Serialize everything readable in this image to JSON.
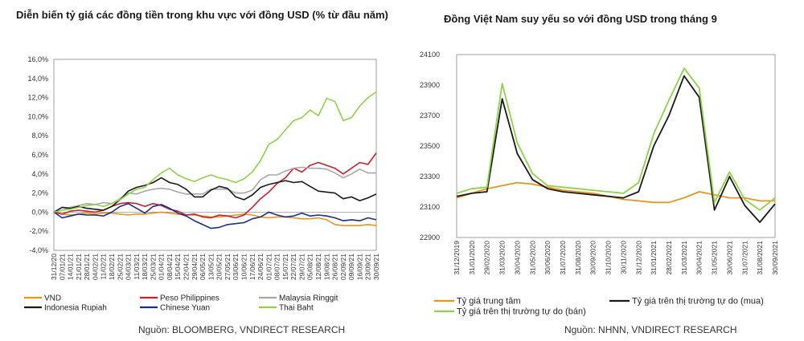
{
  "left": {
    "title": "Diễn biến tỷ giá các đồng tiền trong khu vực với đồng   USD (% từ đầu năm)",
    "source": "Nguồn: BLOOMBERG, VNDIRECT RESEARCH",
    "colors": {
      "VND": "#e8951f",
      "Peso Philippines": "#c8202e",
      "Malaysia Ringgit": "#a8a8a8",
      "Indonesia Rupiah": "#1a1a1a",
      "Chinese Yuan": "#1a2f8c",
      "Thai Baht": "#8ed24a"
    },
    "chart_data": {
      "type": "line",
      "ylim": [
        -4.0,
        16.0
      ],
      "yticks": [
        "16,0%",
        "14,0%",
        "12,0%",
        "10,0%",
        "8,0%",
        "6,0%",
        "4,0%",
        "2,0%",
        "0,0%",
        "-2,0%",
        "-4,0%"
      ],
      "yvalues": [
        16,
        14,
        12,
        10,
        8,
        6,
        4,
        2,
        0,
        -2,
        -4
      ],
      "categories": [
        "31/12/20",
        "07/01/21",
        "14/01/21",
        "21/01/21",
        "28/01/21",
        "04/02/21",
        "11/02/21",
        "18/02/21",
        "25/02/21",
        "04/03/21",
        "11/03/21",
        "18/03/21",
        "25/03/21",
        "01/04/21",
        "08/04/21",
        "15/04/21",
        "22/04/21",
        "29/04/21",
        "06/05/21",
        "13/05/21",
        "20/05/21",
        "27/05/21",
        "03/06/21",
        "10/06/21",
        "17/06/21",
        "24/06/21",
        "01/07/21",
        "08/07/21",
        "15/07/21",
        "22/07/21",
        "29/07/21",
        "05/08/21",
        "12/08/21",
        "19/08/21",
        "26/08/21",
        "02/09/21",
        "09/09/21",
        "16/09/21",
        "23/09/21",
        "30/09/21"
      ],
      "series": [
        {
          "name": "VND",
          "values": [
            0,
            -0.2,
            -0.3,
            -0.2,
            -0.1,
            -0.2,
            -0.1,
            -0.1,
            -0.2,
            -0.3,
            -0.2,
            -0.2,
            -0.1,
            0,
            -0.1,
            -0.2,
            -0.3,
            -0.3,
            -0.4,
            -0.5,
            -0.5,
            -0.4,
            -0.3,
            -0.2,
            -0.3,
            -0.5,
            -0.6,
            -0.5,
            -0.5,
            -0.6,
            -0.7,
            -0.7,
            -0.6,
            -0.8,
            -1.3,
            -1.4,
            -1.4,
            -1.4,
            -1.3,
            -1.4
          ]
        },
        {
          "name": "Peso Philippines",
          "values": [
            0,
            -0.2,
            0.1,
            0.2,
            0.1,
            0,
            0.2,
            0.6,
            0.9,
            1.0,
            0.9,
            0.6,
            0.9,
            0.7,
            0.3,
            0.1,
            -0.3,
            -0.2,
            -0.5,
            -0.6,
            -0.3,
            -0.4,
            -0.6,
            -0.3,
            0.5,
            1.4,
            2.1,
            3.0,
            3.6,
            4.6,
            4.2,
            4.9,
            5.2,
            4.9,
            4.6,
            4.0,
            4.6,
            5.2,
            5.0,
            6.2
          ]
        },
        {
          "name": "Malaysia Ringgit",
          "values": [
            0,
            0.2,
            0.5,
            0.7,
            0.9,
            0.8,
            1.0,
            0.9,
            1.4,
            2.0,
            1.9,
            2.2,
            2.4,
            2.5,
            2.4,
            2.1,
            1.9,
            1.9,
            1.9,
            2.4,
            2.4,
            2.4,
            2.0,
            2.0,
            2.3,
            3.4,
            3.9,
            3.9,
            4.3,
            4.6,
            4.7,
            4.6,
            4.6,
            4.5,
            4.1,
            3.6,
            4.0,
            4.5,
            4.1,
            4.1
          ]
        },
        {
          "name": "Indonesia Rupiah",
          "values": [
            0,
            0.5,
            0.4,
            0.6,
            0.4,
            0.3,
            0.2,
            0.6,
            1.3,
            2.2,
            2.6,
            2.8,
            3.1,
            3.6,
            3.1,
            2.9,
            2.4,
            1.6,
            1.6,
            2.3,
            2.7,
            2.5,
            1.6,
            1.3,
            1.8,
            2.6,
            2.9,
            3.1,
            3.3,
            3.1,
            3.2,
            2.7,
            2.2,
            2.1,
            2.0,
            1.4,
            1.6,
            1.2,
            1.5,
            1.9
          ]
        },
        {
          "name": "Chinese Yuan",
          "values": [
            0,
            -0.6,
            -0.4,
            -0.2,
            -0.3,
            -0.3,
            -0.4,
            0,
            0.6,
            0.9,
            0.4,
            -0.1,
            0.6,
            0.8,
            0.4,
            -0.1,
            -0.4,
            -0.9,
            -1.3,
            -1.7,
            -1.6,
            -1.3,
            -1.2,
            -1.1,
            -0.7,
            -0.5,
            0,
            -0.3,
            -0.5,
            -0.4,
            -0.1,
            -0.4,
            -0.3,
            -0.4,
            -0.6,
            -0.9,
            -0.8,
            -0.9,
            -0.6,
            -0.8
          ]
        },
        {
          "name": "Thai Baht",
          "values": [
            0,
            0.2,
            0.3,
            0.5,
            0.7,
            0.8,
            0.6,
            0.9,
            1.3,
            1.9,
            2.4,
            2.6,
            3.4,
            4.1,
            4.6,
            3.9,
            3.5,
            3.2,
            3.6,
            3.9,
            3.6,
            3.4,
            3.1,
            3.5,
            4.2,
            5.4,
            7.1,
            7.6,
            8.6,
            9.6,
            9.9,
            10.7,
            10.1,
            11.9,
            11.6,
            9.6,
            9.9,
            11.1,
            12.0,
            12.6
          ]
        }
      ]
    }
  },
  "right": {
    "title": "Đồng Việt Nam suy yếu so với đồng USD trong tháng 9",
    "source": "Nguồn: NHNN, VNDIRECT RESEARCH",
    "colors": {
      "central": "#e8951f",
      "buy": "#1a1a1a",
      "sell": "#8ed24a"
    },
    "chart_data": {
      "type": "line",
      "ylim": [
        22900,
        24100
      ],
      "yticks": [
        "24100",
        "23900",
        "23700",
        "23500",
        "23300",
        "23100",
        "22900"
      ],
      "yvalues": [
        24100,
        23900,
        23700,
        23500,
        23300,
        23100,
        22900
      ],
      "categories": [
        "31/12/2019",
        "31/01/2020",
        "29/02/2020",
        "31/03/2020",
        "30/04/2020",
        "31/05/2020",
        "30/06/2020",
        "31/07/2020",
        "31/08/2020",
        "30/09/2020",
        "31/10/2020",
        "30/11/2020",
        "31/12/2020",
        "31/01/2021",
        "28/02/2021",
        "31/03/2021",
        "30/04/2021",
        "31/05/2021",
        "30/06/2021",
        "31/07/2021",
        "31/08/2021",
        "30/09/2021"
      ],
      "series": [
        {
          "name": "Tỷ giá trung tâm",
          "values": [
            23160,
            23190,
            23220,
            23240,
            23260,
            23250,
            23230,
            23210,
            23200,
            23190,
            23170,
            23150,
            23140,
            23130,
            23130,
            23160,
            23200,
            23180,
            23160,
            23160,
            23140,
            23140
          ]
        },
        {
          "name": "Tỷ giá trên thị trường tự do (mua)",
          "values": [
            23170,
            23190,
            23200,
            23810,
            23450,
            23280,
            23220,
            23200,
            23190,
            23180,
            23170,
            23160,
            23200,
            23500,
            23700,
            23960,
            23820,
            23080,
            23300,
            23110,
            23000,
            23120
          ]
        },
        {
          "name": "Tỷ giá trên thị trường tự do (bán)",
          "values": [
            23190,
            23220,
            23230,
            23910,
            23520,
            23320,
            23240,
            23230,
            23220,
            23210,
            23200,
            23190,
            23260,
            23580,
            23800,
            24010,
            23880,
            23130,
            23330,
            23150,
            23080,
            23160
          ]
        }
      ]
    }
  }
}
